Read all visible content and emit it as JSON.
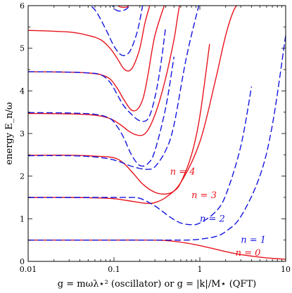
{
  "chart_data": {
    "type": "line",
    "xscale": "log",
    "xlim": [
      0.01,
      10
    ],
    "ylim": [
      0,
      6
    ],
    "grid": false,
    "xlabel": "g = mωλ⋆² (oscillator) or g = |k|/M⋆ (QFT)",
    "ylabel": "energy E_n/ω",
    "xticks": [
      {
        "v": 0.01,
        "label": "0.01"
      },
      {
        "v": 0.1,
        "label": "0.1"
      },
      {
        "v": 1,
        "label": "1"
      },
      {
        "v": 10,
        "label": "10"
      }
    ],
    "yticks": [
      {
        "v": 0,
        "label": "0"
      },
      {
        "v": 1,
        "label": "1"
      },
      {
        "v": 2,
        "label": "2"
      },
      {
        "v": 3,
        "label": "3"
      },
      {
        "v": 4,
        "label": "4"
      },
      {
        "v": 5,
        "label": "5"
      },
      {
        "v": 6,
        "label": "6"
      }
    ],
    "colors": {
      "red": "#e8141c",
      "blue": "#1414e0"
    },
    "series": [
      {
        "color": "red",
        "style": "solid",
        "x": [
          0.01,
          0.03,
          0.06,
          0.1,
          0.2,
          0.4,
          0.7,
          1,
          1.5,
          2,
          3,
          5,
          7,
          10
        ],
        "y": [
          0.5,
          0.5,
          0.5,
          0.5,
          0.5,
          0.49,
          0.43,
          0.37,
          0.29,
          0.23,
          0.16,
          0.1,
          0.07,
          0.05
        ]
      },
      {
        "color": "blue",
        "style": "dashed",
        "x": [
          0.01,
          0.03,
          0.06,
          0.1,
          0.2,
          0.4,
          0.7,
          1,
          1.5,
          2,
          3,
          5,
          7,
          10
        ],
        "y": [
          0.5,
          0.5,
          0.5,
          0.5,
          0.5,
          0.5,
          0.5,
          0.52,
          0.58,
          0.7,
          1.05,
          2,
          3.2,
          5.3
        ]
      },
      {
        "color": "red",
        "style": "solid",
        "x": [
          0.01,
          0.03,
          0.06,
          0.1,
          0.14,
          0.2,
          0.25,
          0.3,
          0.4,
          0.6,
          1,
          1.5,
          2,
          2.5,
          3
        ],
        "y": [
          1.5,
          1.5,
          1.49,
          1.47,
          1.43,
          1.38,
          1.36,
          1.38,
          1.5,
          1.85,
          2.8,
          4.2,
          5.3,
          5.9,
          6.1
        ]
      },
      {
        "color": "blue",
        "style": "dashed",
        "x": [
          0.01,
          0.03,
          0.06,
          0.1,
          0.15,
          0.2,
          0.3,
          0.45,
          0.6,
          0.8,
          1,
          1.5,
          2,
          3,
          4
        ],
        "y": [
          1.5,
          1.5,
          1.5,
          1.5,
          1.5,
          1.48,
          1.3,
          1.04,
          0.9,
          0.86,
          0.9,
          1.15,
          1.55,
          2.7,
          4.1
        ]
      },
      {
        "color": "red",
        "style": "solid",
        "x": [
          0.01,
          0.03,
          0.06,
          0.1,
          0.13,
          0.17,
          0.22,
          0.3,
          0.4,
          0.5,
          0.6,
          0.8,
          1,
          1.3
        ],
        "y": [
          2.49,
          2.49,
          2.47,
          2.43,
          2.3,
          2.05,
          1.8,
          1.62,
          1.58,
          1.65,
          1.85,
          2.5,
          3.4,
          5.1
        ]
      },
      {
        "color": "blue",
        "style": "dashed",
        "x": [
          0.01,
          0.03,
          0.06,
          0.09,
          0.12,
          0.15,
          0.2,
          0.25,
          0.3,
          0.4,
          0.5,
          0.7,
          1
        ],
        "y": [
          2.48,
          2.48,
          2.45,
          2.4,
          2.33,
          2.25,
          2.18,
          2.16,
          2.22,
          2.6,
          3.2,
          4.8,
          6.1
        ]
      },
      {
        "color": "red",
        "style": "solid",
        "x": [
          0.01,
          0.03,
          0.06,
          0.09,
          0.12,
          0.15,
          0.18,
          0.22,
          0.26,
          0.32,
          0.4,
          0.5,
          0.6,
          0.75
        ],
        "y": [
          3.47,
          3.46,
          3.43,
          3.35,
          3.2,
          3.05,
          2.97,
          2.97,
          3.15,
          3.6,
          4.3,
          5.2,
          6.1,
          6.1
        ]
      },
      {
        "color": "blue",
        "style": "dashed",
        "x": [
          0.01,
          0.03,
          0.06,
          0.09,
          0.11,
          0.13,
          0.16,
          0.2,
          0.25,
          0.3,
          0.4,
          0.5
        ],
        "y": [
          3.49,
          3.48,
          3.45,
          3.35,
          3.15,
          2.9,
          2.5,
          2.25,
          2.3,
          2.6,
          3.6,
          4.8
        ]
      },
      {
        "color": "red",
        "style": "solid",
        "x": [
          0.01,
          0.03,
          0.05,
          0.07,
          0.09,
          0.11,
          0.13,
          0.16,
          0.19,
          0.22,
          0.25,
          0.3,
          0.4
        ],
        "y": [
          4.45,
          4.44,
          4.42,
          4.38,
          4.28,
          4.05,
          3.8,
          3.55,
          3.58,
          3.85,
          4.4,
          5.3,
          6.1
        ]
      },
      {
        "color": "blue",
        "style": "dashed",
        "x": [
          0.01,
          0.03,
          0.05,
          0.07,
          0.09,
          0.11,
          0.13,
          0.16,
          0.2,
          0.25,
          0.3,
          0.35,
          0.4
        ],
        "y": [
          4.45,
          4.44,
          4.42,
          4.38,
          4.2,
          3.9,
          3.65,
          3.45,
          3.3,
          3.35,
          3.85,
          4.6,
          5.5
        ]
      },
      {
        "color": "red",
        "style": "solid",
        "x": [
          0.01,
          0.03,
          0.05,
          0.07,
          0.09,
          0.11,
          0.13,
          0.15,
          0.17,
          0.2,
          0.23,
          0.27
        ],
        "y": [
          5.42,
          5.38,
          5.3,
          5.2,
          5.0,
          4.75,
          4.52,
          4.47,
          4.6,
          5.0,
          5.6,
          6.1
        ]
      },
      {
        "color": "blue",
        "style": "dashed",
        "x": [
          0.045,
          0.06,
          0.08,
          0.1,
          0.12,
          0.14,
          0.16,
          0.19,
          0.22
        ],
        "y": [
          6.1,
          5.9,
          5.45,
          5.05,
          4.85,
          4.85,
          5.0,
          5.45,
          6.1
        ]
      },
      {
        "color": "red",
        "style": "solid",
        "x": [
          0.1,
          0.115,
          0.13,
          0.145,
          0.16
        ],
        "y": [
          6.1,
          5.98,
          5.96,
          5.98,
          6.1
        ]
      },
      {
        "color": "blue",
        "style": "dashed",
        "x": [
          0.09,
          0.105,
          0.125,
          0.145,
          0.16
        ],
        "y": [
          6.1,
          5.9,
          5.88,
          5.95,
          6.1
        ]
      }
    ],
    "annotations": [
      {
        "text": "n = 0",
        "x": 2.6,
        "y": 0.2,
        "color": "red"
      },
      {
        "text": "n = 1",
        "x": 3.0,
        "y": 0.5,
        "color": "blue"
      },
      {
        "text": "n = 2",
        "x": 1.0,
        "y": 1.0,
        "color": "blue"
      },
      {
        "text": "n = 3",
        "x": 0.8,
        "y": 1.55,
        "color": "red"
      },
      {
        "text": "n = 4",
        "x": 0.45,
        "y": 2.1,
        "color": "red"
      }
    ]
  }
}
